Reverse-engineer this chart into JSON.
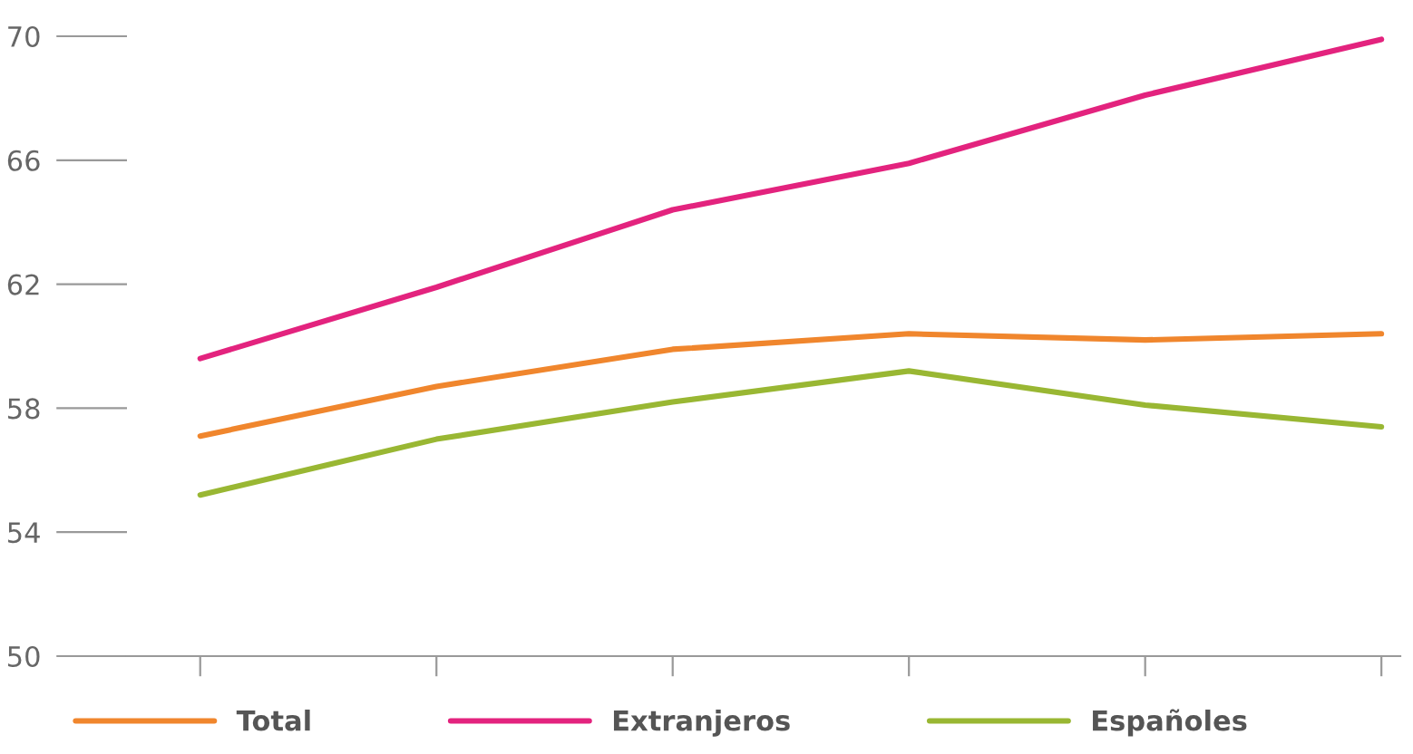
{
  "chart_data": {
    "type": "line",
    "categories": [
      null,
      null,
      null,
      null,
      null,
      null
    ],
    "series": [
      {
        "name": "Total",
        "color": "#f0862d",
        "values": [
          57.1,
          58.7,
          59.9,
          60.4,
          60.2,
          60.4
        ]
      },
      {
        "name": "Extranjeros",
        "color": "#e3237e",
        "values": [
          59.6,
          61.9,
          64.4,
          65.9,
          68.1,
          69.9
        ]
      },
      {
        "name": "Españoles",
        "color": "#99b733",
        "values": [
          55.2,
          57.0,
          58.2,
          59.2,
          58.1,
          57.4
        ]
      }
    ],
    "ylim": [
      50,
      70
    ],
    "yticks": [
      50,
      54,
      58,
      62,
      66,
      70
    ],
    "legend": "bottom",
    "grid": false,
    "marker": "none",
    "line_style": "solid"
  }
}
